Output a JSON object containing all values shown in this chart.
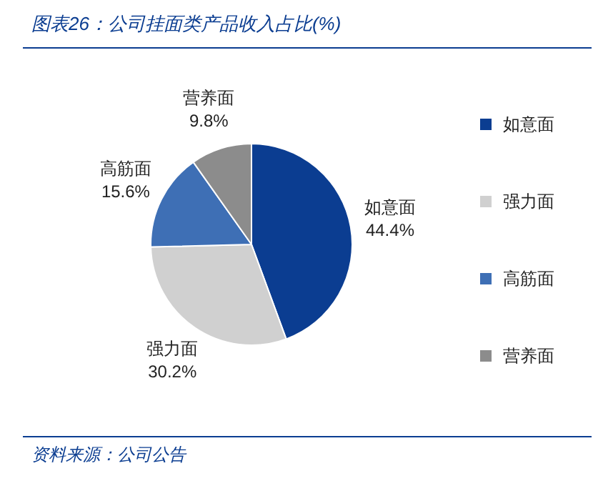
{
  "chart_data": {
    "type": "pie",
    "title": "图表26：公司挂面类产品收入占比(%)",
    "categories": [
      "如意面",
      "强力面",
      "高筋面",
      "营养面"
    ],
    "values": [
      44.4,
      30.2,
      15.6,
      9.8
    ],
    "value_labels": [
      "44.4%",
      "30.2%",
      "15.6%",
      "9.8%"
    ],
    "colors": [
      "#0b3d91",
      "#d0d0d0",
      "#3e6fb5",
      "#8c8c8c"
    ],
    "legend": "right",
    "annotations": [
      "资料来源：公司公告"
    ]
  }
}
